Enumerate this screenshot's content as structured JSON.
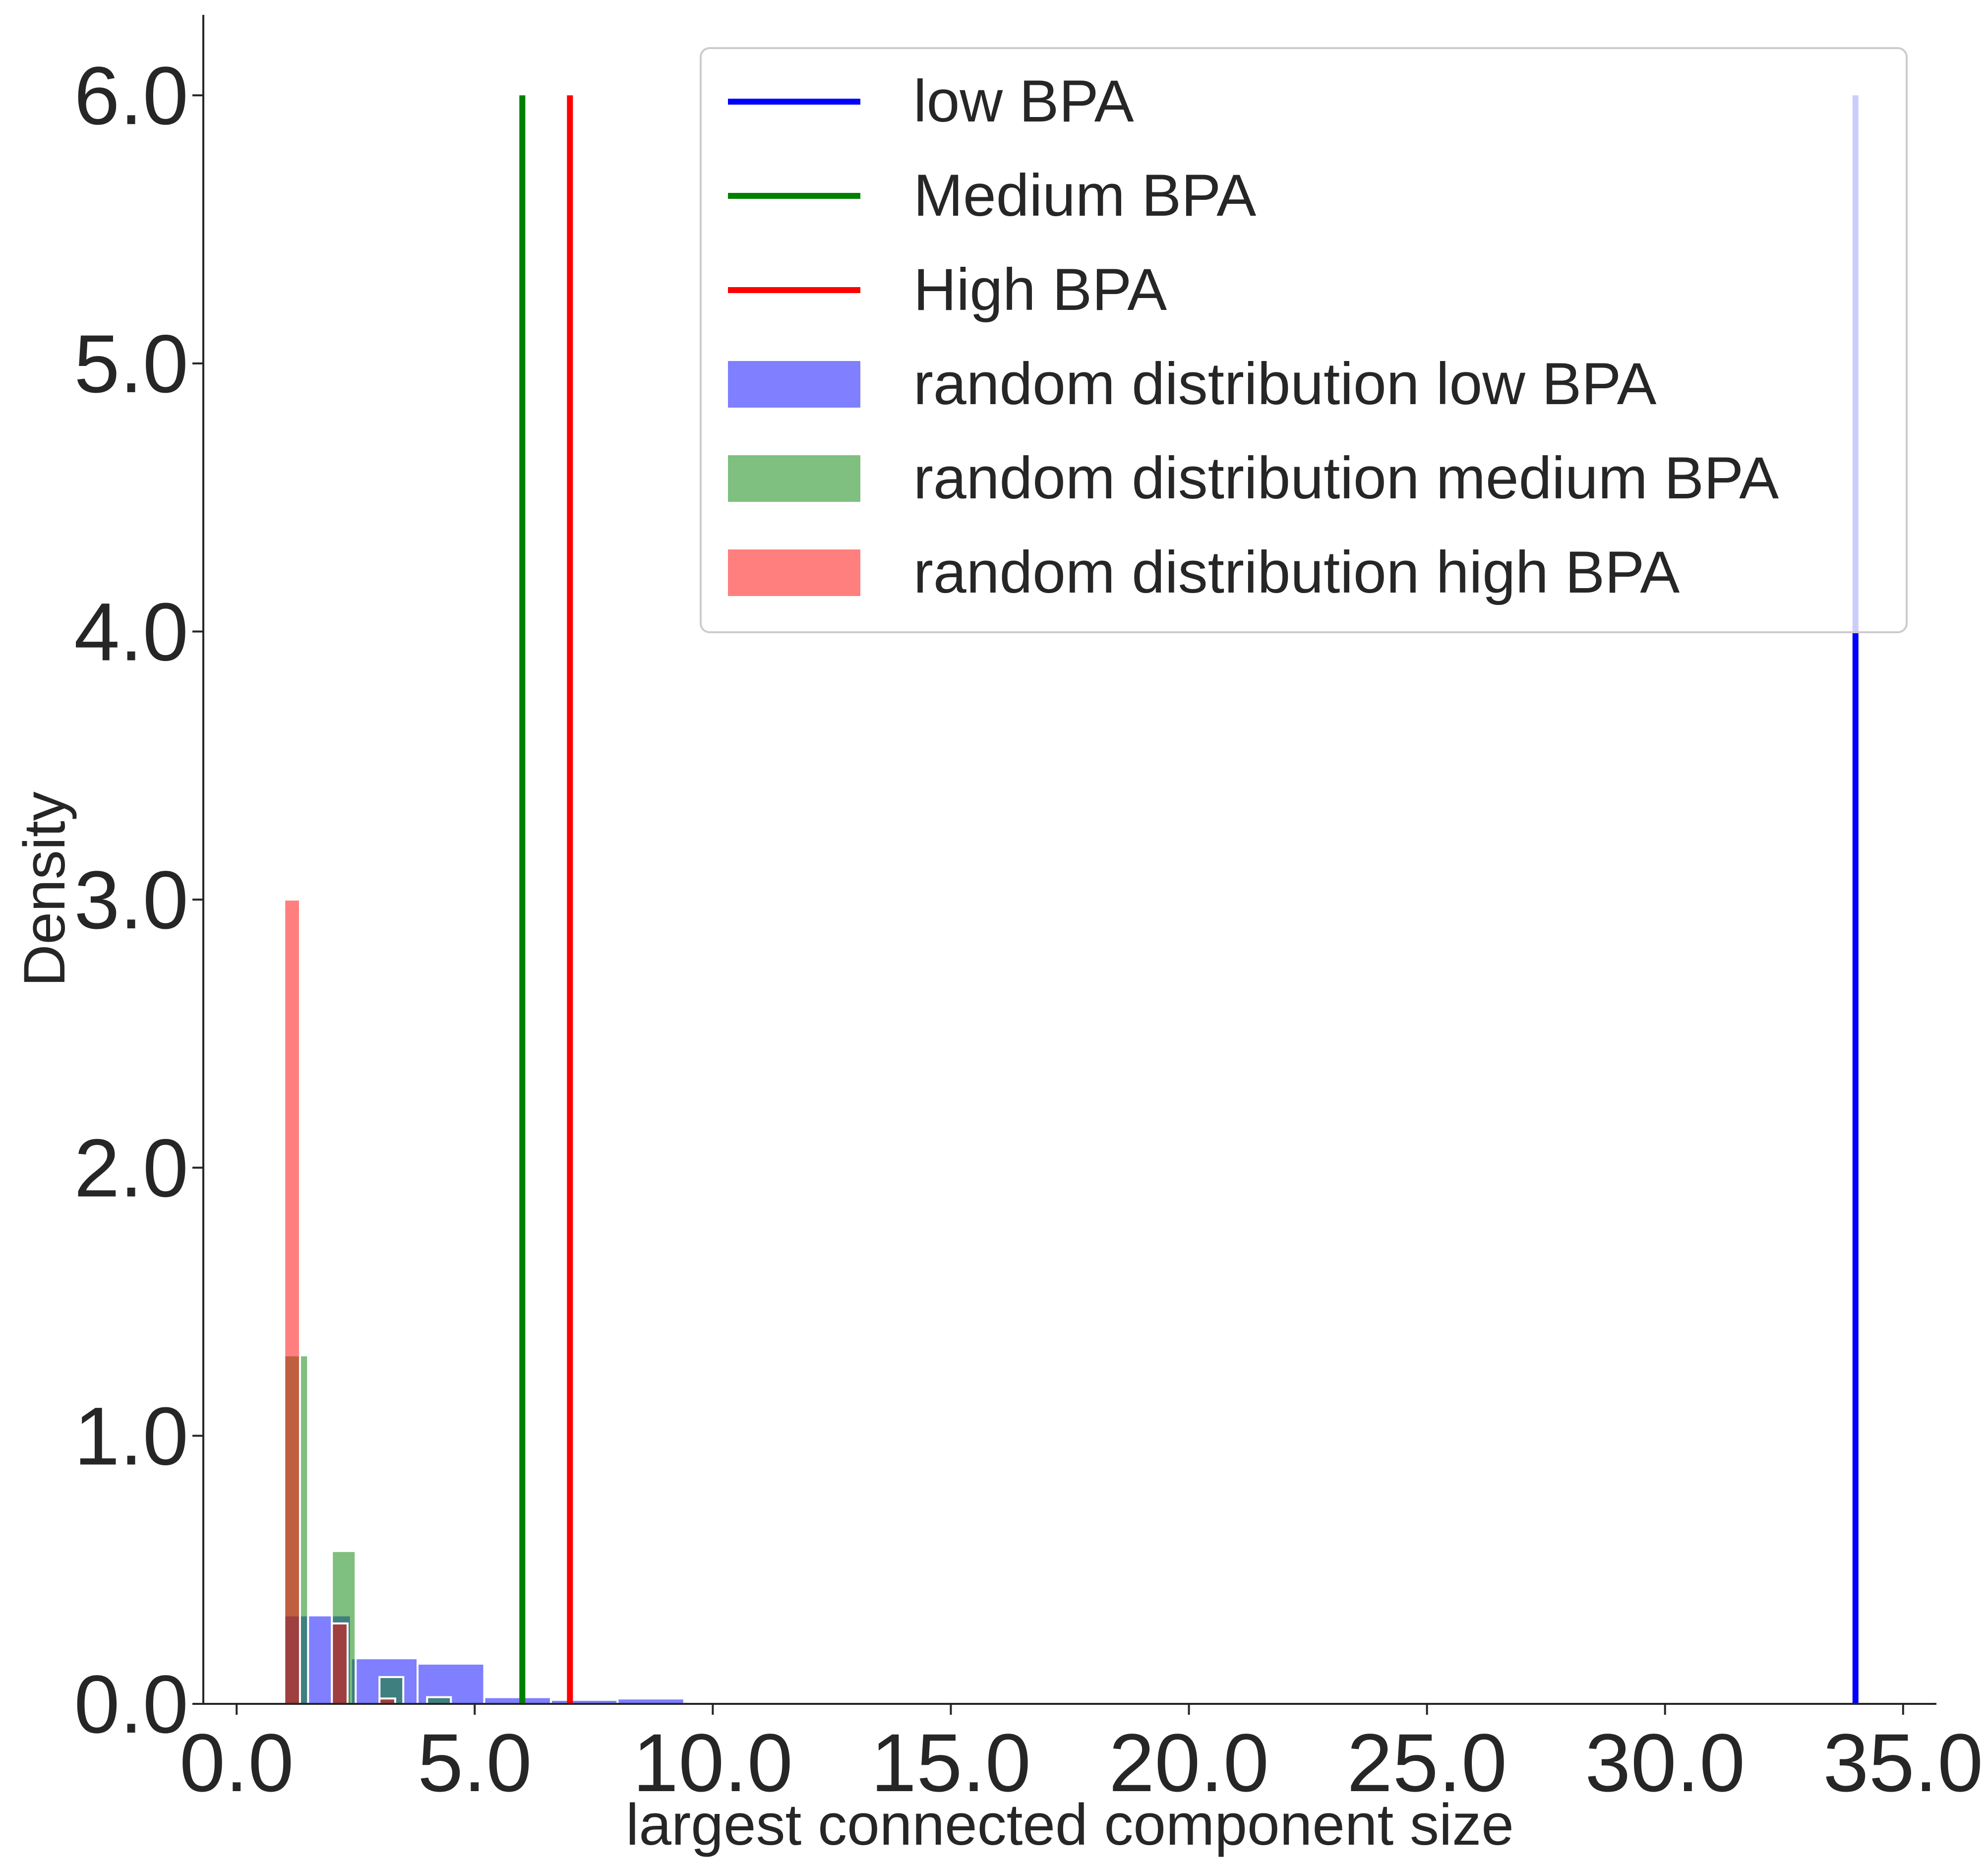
{
  "chart_data": {
    "type": "bar",
    "title": "",
    "xlabel": "largest connected component size",
    "ylabel": "Density",
    "xlim": [
      -0.7,
      35.7
    ],
    "ylim": [
      0,
      6.3
    ],
    "x_ticks": [
      "0.0",
      "5.0",
      "10.0",
      "15.0",
      "20.0",
      "25.0",
      "30.0",
      "35.0"
    ],
    "x_tick_values": [
      0,
      5,
      10,
      15,
      20,
      25,
      30,
      35
    ],
    "y_ticks": [
      "0.0",
      "1.0",
      "2.0",
      "3.0",
      "4.0",
      "5.0",
      "6.0"
    ],
    "y_tick_values": [
      0,
      1,
      2,
      3,
      4,
      5,
      6
    ],
    "grid": false,
    "legend_position": "top-right",
    "legend": [
      {
        "label": "low BPA",
        "kind": "line",
        "color": "#0000ff"
      },
      {
        "label": "Medium BPA",
        "kind": "line",
        "color": "#008000"
      },
      {
        "label": "High BPA",
        "kind": "line",
        "color": "#ff0000"
      },
      {
        "label": "random distribution low BPA",
        "kind": "patch",
        "color": "#0000ff"
      },
      {
        "label": "random distribution medium BPA",
        "kind": "patch",
        "color": "#008000"
      },
      {
        "label": "random distribution high BPA",
        "kind": "patch",
        "color": "#ff0000"
      }
    ],
    "vlines": [
      {
        "series": "low BPA",
        "x": 34,
        "ymax": 6.0,
        "color": "#0000ff"
      },
      {
        "series": "Medium BPA",
        "x": 6,
        "ymax": 6.0,
        "color": "#008000"
      },
      {
        "series": "High BPA",
        "x": 7,
        "ymax": 6.0,
        "color": "#ff0000"
      }
    ],
    "histograms": [
      {
        "series": "random distribution low BPA",
        "color": "#0000ff",
        "opacity": 0.5,
        "bins": [
          {
            "x0": 1.0,
            "x1": 2.4,
            "density": 0.33
          },
          {
            "x0": 2.4,
            "x1": 3.8,
            "density": 0.17
          },
          {
            "x0": 3.8,
            "x1": 5.2,
            "density": 0.15
          },
          {
            "x0": 5.2,
            "x1": 6.6,
            "density": 0.025
          },
          {
            "x0": 6.6,
            "x1": 8.0,
            "density": 0.015
          },
          {
            "x0": 8.0,
            "x1": 9.4,
            "density": 0.02
          },
          {
            "x0": 9.4,
            "x1": 10.8,
            "density": 0.004
          },
          {
            "x0": 10.8,
            "x1": 12.2,
            "density": 0.004
          }
        ]
      },
      {
        "series": "random distribution medium BPA",
        "color": "#008000",
        "opacity": 0.5,
        "bins": [
          {
            "x0": 1.0,
            "x1": 1.5,
            "density": 1.3
          },
          {
            "x0": 1.5,
            "x1": 2.0,
            "density": 0.0
          },
          {
            "x0": 2.0,
            "x1": 2.5,
            "density": 0.57
          },
          {
            "x0": 2.5,
            "x1": 3.0,
            "density": 0.0
          },
          {
            "x0": 3.0,
            "x1": 3.5,
            "density": 0.1
          },
          {
            "x0": 3.5,
            "x1": 4.0,
            "density": 0.0
          },
          {
            "x0": 4.0,
            "x1": 4.5,
            "density": 0.025
          }
        ]
      },
      {
        "series": "random distribution high BPA",
        "color": "#ff0000",
        "opacity": 0.5,
        "bins": [
          {
            "x0": 1.0,
            "x1": 1.33,
            "density": 3.0
          },
          {
            "x0": 1.33,
            "x1": 1.67,
            "density": 0.0
          },
          {
            "x0": 1.67,
            "x1": 2.0,
            "density": 0.0
          },
          {
            "x0": 2.0,
            "x1": 2.33,
            "density": 0.3
          },
          {
            "x0": 2.33,
            "x1": 2.67,
            "density": 0.0
          },
          {
            "x0": 2.67,
            "x1": 3.0,
            "density": 0.0
          },
          {
            "x0": 3.0,
            "x1": 3.33,
            "density": 0.02
          }
        ]
      }
    ]
  }
}
